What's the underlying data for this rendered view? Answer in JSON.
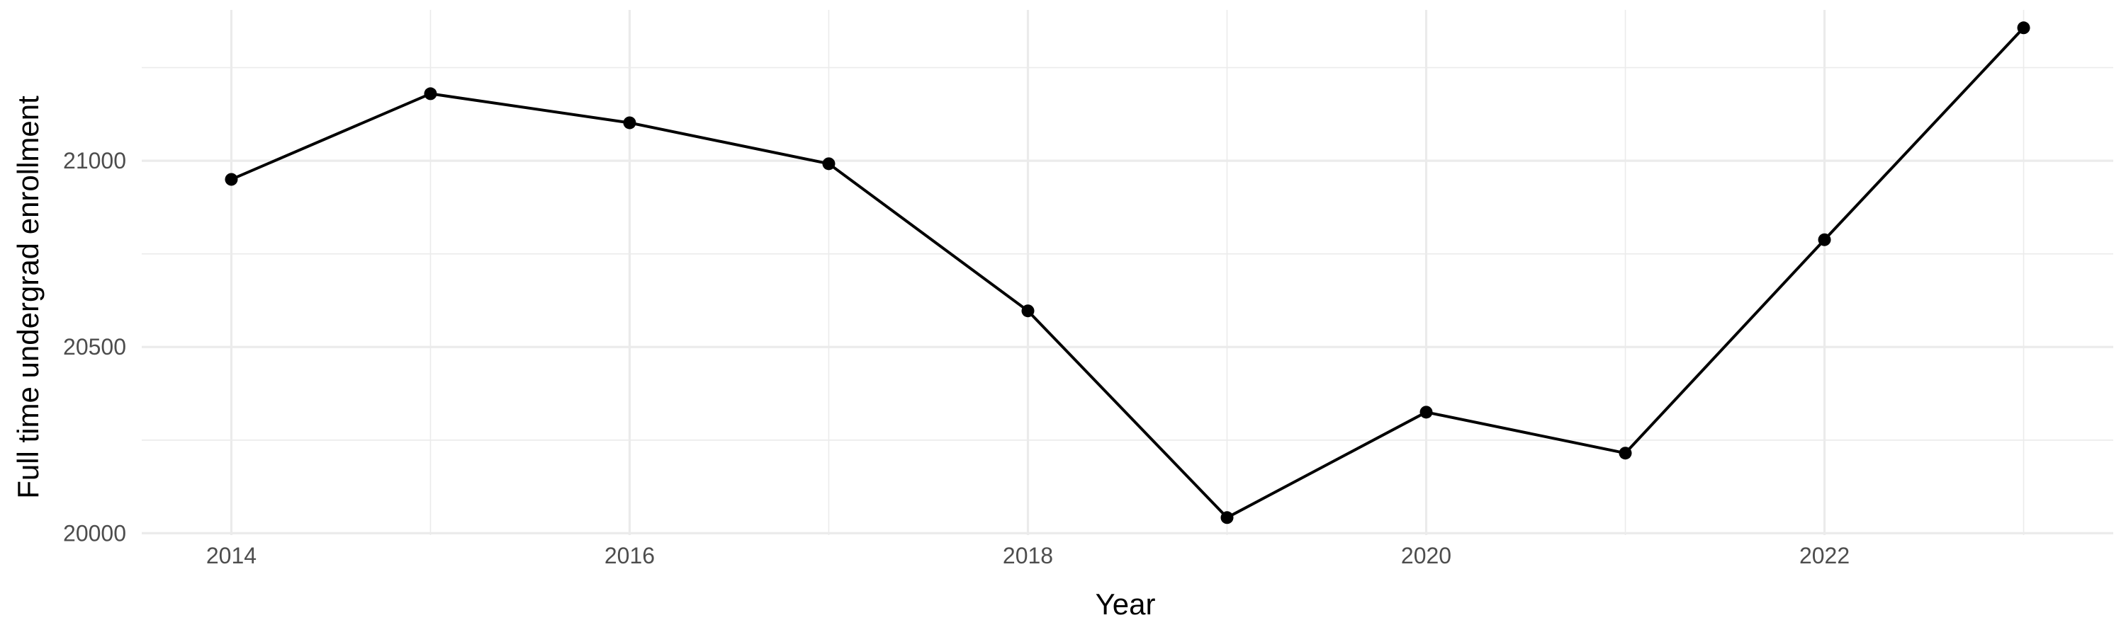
{
  "chart_data": {
    "type": "line",
    "title": "",
    "xlabel": "Year",
    "ylabel": "Full time undergrad enrollment",
    "x": [
      2014,
      2015,
      2016,
      2017,
      2018,
      2019,
      2020,
      2021,
      2022,
      2023
    ],
    "series": [
      {
        "values": [
          20950,
          21180,
          21102,
          20992,
          20597,
          20042,
          20325,
          20215,
          20788,
          21357
        ]
      }
    ],
    "xlim": [
      2013.55,
      2023.45
    ],
    "ylim": [
      19995,
      21405
    ],
    "x_ticks": [
      2014,
      2016,
      2018,
      2020,
      2022
    ],
    "x_tick_labels": [
      "2014",
      "2016",
      "2018",
      "2020",
      "2022"
    ],
    "y_ticks": [
      20000,
      20500,
      21000
    ],
    "y_tick_labels": [
      "20000",
      "20500",
      "21000"
    ],
    "grid": true,
    "legend": "none",
    "colors": {
      "line": "#000000",
      "points": "#000000",
      "grid": "#ebebeb",
      "tick_text": "#4d4d4d",
      "background": "#ffffff"
    }
  }
}
